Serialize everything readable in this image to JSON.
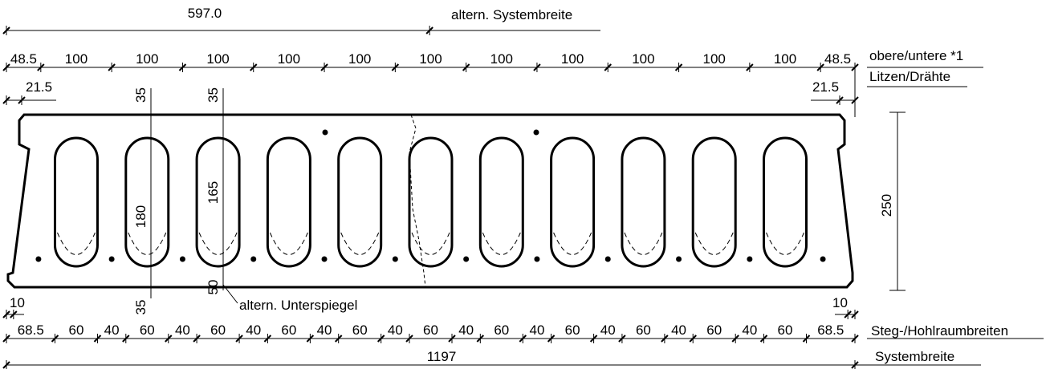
{
  "dimensions": {
    "half_width": {
      "label": "597.0",
      "note": "altern. Systembreite"
    },
    "strands": {
      "segments": [
        48.5,
        100,
        100,
        100,
        100,
        100,
        100,
        100,
        100,
        100,
        100,
        100,
        48.5
      ],
      "note_1": "obere/untere *1",
      "note_2": "Litzen/Drähte"
    },
    "edge_left": 21.5,
    "edge_right": 21.5,
    "top_cover_1": 35,
    "top_cover_2": 35,
    "void_height_1": 180,
    "void_height_2": 165,
    "bottom_cover": 50,
    "bottom_cover_alt": 35,
    "bottom_note": "altern. Unterspiegel",
    "height": 250,
    "bottom_edge_left": 10,
    "bottom_edge_right": 10,
    "webs": {
      "segments": [
        68.5,
        60,
        40,
        60,
        40,
        60,
        40,
        60,
        40,
        60,
        40,
        60,
        40,
        60,
        40,
        60,
        40,
        60,
        40,
        60,
        40,
        60,
        68.5
      ],
      "note": "Steg-/Hohlraumbreiten"
    },
    "total": {
      "value": 1197,
      "note": "Systembreite"
    }
  }
}
